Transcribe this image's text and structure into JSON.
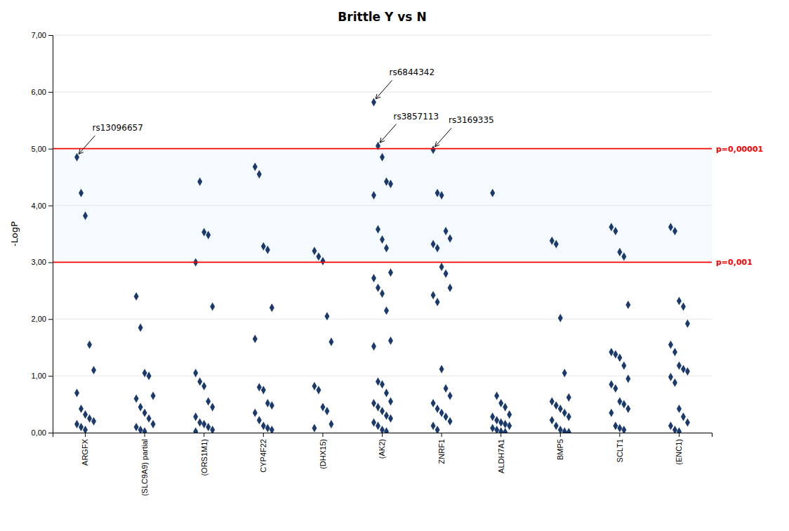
{
  "chart_data": {
    "type": "scatter",
    "title": "Brittle Y vs N",
    "y_label": "-LogP",
    "marker": "diamond",
    "color": "#1a3a6b",
    "grid": true,
    "categories": [
      "ARGFX",
      "(SLC9A9) partial",
      "(ORS1M1)",
      "CYP4F22",
      "(DHX15)",
      "(AK2)",
      "ZNRF1",
      "ALDH7A1",
      "BMP5",
      "SCLT1",
      "(ENC1)"
    ],
    "values": [
      [
        4.85,
        4.22,
        3.82,
        1.55,
        1.1,
        0.7,
        0.42,
        0.32,
        0.25,
        0.2,
        0.15,
        0.1,
        0.05
      ],
      [
        2.4,
        1.85,
        1.05,
        1.0,
        0.65,
        0.6,
        0.45,
        0.35,
        0.25,
        0.15,
        0.1,
        0.05,
        0.02
      ],
      [
        3.0,
        4.42,
        3.53,
        3.48,
        2.22,
        1.05,
        0.9,
        0.82,
        0.55,
        0.45,
        0.28,
        0.18,
        0.15,
        0.1,
        0.05,
        0.02
      ],
      [
        4.68,
        4.55,
        3.28,
        3.22,
        2.2,
        1.65,
        0.8,
        0.75,
        0.52,
        0.48,
        0.35,
        0.22,
        0.12,
        0.08,
        0.05
      ],
      [
        3.2,
        3.1,
        3.02,
        2.05,
        1.6,
        0.82,
        0.75,
        0.45,
        0.38,
        0.15,
        0.08
      ],
      [
        5.82,
        5.05,
        4.85,
        4.42,
        4.38,
        4.18,
        3.58,
        3.4,
        3.25,
        2.82,
        2.72,
        2.55,
        2.45,
        2.15,
        1.62,
        1.52,
        0.9,
        0.85,
        0.7,
        0.55,
        0.52,
        0.45,
        0.38,
        0.3,
        0.25,
        0.18,
        0.12,
        0.05,
        0.02
      ],
      [
        4.98,
        4.22,
        4.18,
        3.55,
        3.42,
        3.32,
        3.25,
        2.92,
        2.8,
        2.55,
        2.42,
        2.3,
        1.12,
        0.78,
        0.65,
        0.52,
        0.42,
        0.35,
        0.28,
        0.2,
        0.12,
        0.05
      ],
      [
        4.22,
        0.65,
        0.52,
        0.45,
        0.32,
        0.28,
        0.22,
        0.18,
        0.15,
        0.12,
        0.08,
        0.05,
        0.02,
        0.01
      ],
      [
        3.38,
        3.32,
        2.02,
        1.05,
        0.62,
        0.55,
        0.48,
        0.42,
        0.35,
        0.28,
        0.22,
        0.12,
        0.05,
        0.02,
        0.01
      ],
      [
        3.62,
        3.55,
        3.18,
        3.1,
        2.25,
        1.42,
        1.38,
        1.32,
        1.18,
        0.95,
        0.85,
        0.78,
        0.55,
        0.5,
        0.42,
        0.35,
        0.12,
        0.08,
        0.05
      ],
      [
        3.62,
        3.55,
        2.32,
        2.22,
        1.92,
        1.55,
        1.42,
        1.18,
        1.12,
        1.08,
        0.98,
        0.88,
        0.42,
        0.28,
        0.18,
        0.12,
        0.05,
        0.02
      ]
    ],
    "ylim": [
      0.0,
      7.0
    ],
    "yticks": [
      {
        "value": 0.0,
        "label": "0,00"
      },
      {
        "value": 1.0,
        "label": "1,00"
      },
      {
        "value": 2.0,
        "label": "2,00"
      },
      {
        "value": 3.0,
        "label": "3,00"
      },
      {
        "value": 4.0,
        "label": "4,00"
      },
      {
        "value": 5.0,
        "label": "5,00"
      },
      {
        "value": 6.0,
        "label": "6,00"
      },
      {
        "value": 7.0,
        "label": "7,00"
      }
    ],
    "hlines": [
      {
        "value": 5.0,
        "label": "p=0,00001",
        "color": "red"
      },
      {
        "value": 3.0,
        "label": "p=0,001",
        "color": "red"
      }
    ],
    "band_color": "#e0f0f8",
    "annotations": [
      {
        "text": "rs13096657",
        "category": "ARGFX",
        "y": 4.85
      },
      {
        "text": "rs6844342",
        "category": "(AK2)",
        "y": 5.82
      },
      {
        "text": "rs3857113",
        "category": "(AK2)",
        "y": 5.05
      },
      {
        "text": "rs3169335",
        "category": "ZNRF1",
        "y": 4.98
      }
    ]
  }
}
